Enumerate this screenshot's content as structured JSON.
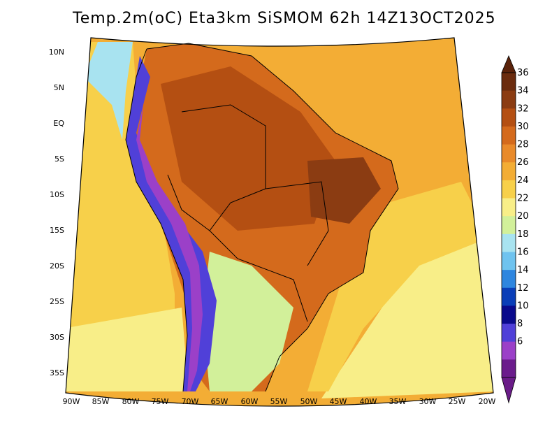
{
  "title": "Temp.2m(oC) Eta3km SiSMOM 62h 14Z13OCT2025",
  "lat_labels": [
    "10N",
    "5N",
    "EQ",
    "5S",
    "10S",
    "15S",
    "20S",
    "25S",
    "30S",
    "35S"
  ],
  "lon_labels": [
    "90W",
    "85W",
    "80W",
    "75W",
    "70W",
    "65W",
    "60W",
    "55W",
    "50W",
    "45W",
    "40W",
    "35W",
    "30W",
    "25W",
    "20W"
  ],
  "colorbar": {
    "labels": [
      "36",
      "34",
      "32",
      "30",
      "28",
      "26",
      "24",
      "22",
      "20",
      "18",
      "16",
      "14",
      "12",
      "10",
      "8",
      "6"
    ],
    "colors": [
      "#6b2c0e",
      "#8b3c12",
      "#b44f12",
      "#d46a1c",
      "#e98a2a",
      "#f3ad35",
      "#f7d04a",
      "#f8ee88",
      "#d2f09a",
      "#a8e3f0",
      "#6fc3ef",
      "#2e86df",
      "#0a3eb8",
      "#0a0a8c",
      "#5040d8",
      "#9b40c8",
      "#6b1c8c"
    ],
    "top_color": "#5a220a",
    "bottom_color": "#6a1c88"
  },
  "palette": {
    "ocean_warm": "#f3ad35",
    "ocean_mid": "#f7d04a",
    "ocean_cool": "#f8ee88",
    "ocean_cold": "#a8e3f0",
    "amazon": "#d46a1c",
    "amazon_hot": "#b44f12",
    "northeast": "#8b3c12",
    "andes_cold": "#5040d8",
    "andes_ridge": "#9b40c8",
    "south_cool": "#d2f09a"
  }
}
